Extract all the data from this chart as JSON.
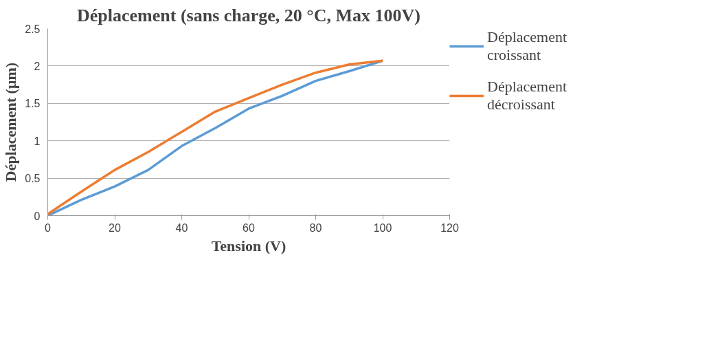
{
  "chart_data": {
    "type": "line",
    "title": "Déplacement (sans charge, 20 °C, Max 100V)",
    "xlabel": "Tension (V)",
    "ylabel": "Déplacement (µm)",
    "x": [
      0,
      10,
      20,
      30,
      40,
      50,
      60,
      70,
      80,
      90,
      100
    ],
    "series": [
      {
        "name": "Déplacement croissant",
        "color": "#5b9bd5",
        "values": [
          0,
          0.21,
          0.39,
          0.61,
          0.93,
          1.17,
          1.43,
          1.6,
          1.8,
          1.93,
          2.07
        ]
      },
      {
        "name": "Déplacement décroissant",
        "color": "#ed7d31",
        "values": [
          0.02,
          0.32,
          0.61,
          0.85,
          1.12,
          1.39,
          1.57,
          1.75,
          1.91,
          2.02,
          2.07
        ]
      }
    ],
    "xlim": [
      0,
      120
    ],
    "xticks": [
      0,
      20,
      40,
      60,
      80,
      100,
      120
    ],
    "ylim": [
      0,
      2.5
    ],
    "yticks": [
      0,
      0.5,
      1,
      1.5,
      2,
      2.5
    ],
    "grid": "y",
    "legend": "right"
  }
}
